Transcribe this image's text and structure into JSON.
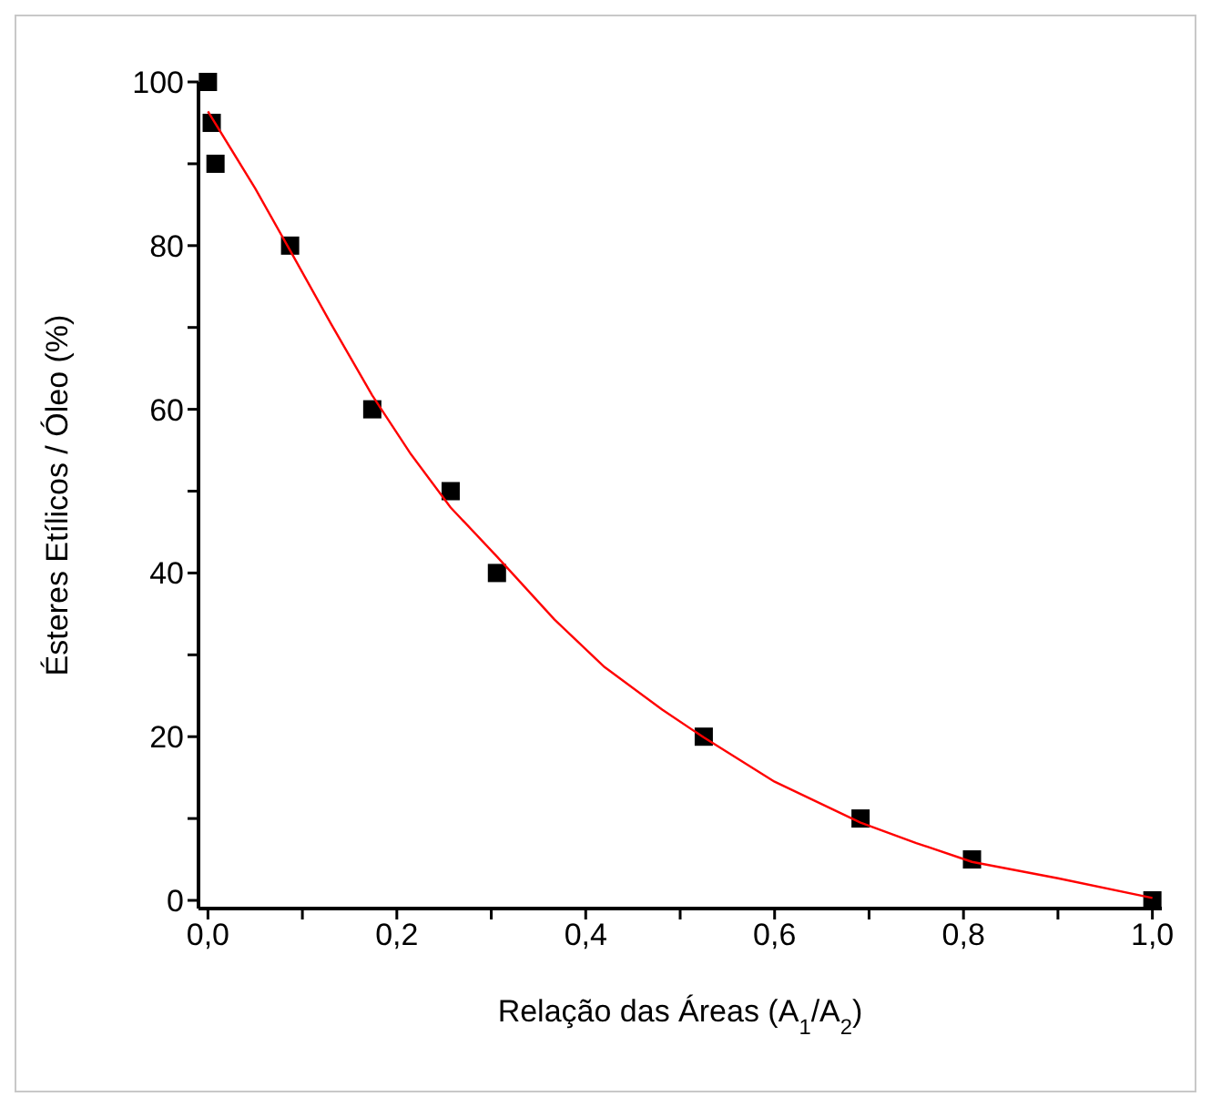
{
  "chart_data": {
    "type": "scatter",
    "xlabel": "Relação das Áreas (A$_{1}$/A$_{2}$)",
    "ylabel": "Ésteres Etílicos / Óleo (%)",
    "xlim": [
      -0.01,
      1.01
    ],
    "ylim": [
      -1,
      100
    ],
    "xticks": [
      {
        "value": 0,
        "label": "0,0"
      },
      {
        "value": 0.1,
        "label": null
      },
      {
        "value": 0.2,
        "label": "0,2"
      },
      {
        "value": 0.3,
        "label": null
      },
      {
        "value": 0.4,
        "label": "0,4"
      },
      {
        "value": 0.5,
        "label": null
      },
      {
        "value": 0.6,
        "label": "0,6"
      },
      {
        "value": 0.7,
        "label": null
      },
      {
        "value": 0.8,
        "label": "0,8"
      },
      {
        "value": 0.9,
        "label": null
      },
      {
        "value": 1.0,
        "label": "1,0"
      }
    ],
    "yticks": [
      0,
      {
        "value": 10,
        "label": null
      },
      20,
      {
        "value": 30,
        "label": null
      },
      40,
      {
        "value": 50,
        "label": null
      },
      60,
      {
        "value": 70,
        "label": null
      },
      80,
      {
        "value": 90,
        "label": null
      },
      100
    ],
    "series": [
      {
        "type": "scatter",
        "color": "#000000",
        "marker": "square",
        "x": [
          0,
          0.004,
          0.008,
          0.087,
          0.174,
          0.257,
          0.306,
          0.525,
          0.691,
          0.809,
          1.0
        ],
        "values": [
          100,
          95,
          90,
          80,
          60,
          50,
          40,
          20,
          10,
          5,
          0
        ]
      },
      {
        "type": "line",
        "color": "#ff0000",
        "marker": "none",
        "x": [
          0,
          0.05,
          0.087,
          0.13,
          0.174,
          0.215,
          0.257,
          0.306,
          0.367,
          0.42,
          0.481,
          0.525,
          0.6,
          0.691,
          0.75,
          0.809,
          0.9,
          1.0
        ],
        "values": [
          96.4,
          87,
          79.4,
          70.5,
          61.7,
          54.5,
          48,
          42,
          34.3,
          28.5,
          23.3,
          19.9,
          14.5,
          9.5,
          7,
          4.7,
          2.7,
          0.3
        ]
      }
    ]
  }
}
